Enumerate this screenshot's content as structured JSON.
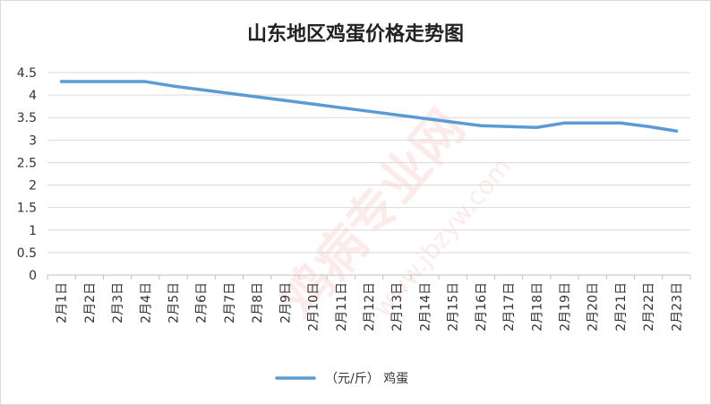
{
  "chart_data": {
    "type": "line",
    "title": "山东地区鸡蛋价格走势图",
    "categories": [
      "2月1日",
      "2月2日",
      "2月3日",
      "2月4日",
      "2月5日",
      "2月6日",
      "2月7日",
      "2月8日",
      "2月9日",
      "2月10日",
      "2月11日",
      "2月12日",
      "2月13日",
      "2月14日",
      "2月15日",
      "2月16日",
      "2月17日",
      "2月18日",
      "2月19日",
      "2月20日",
      "2月21日",
      "2月22日",
      "2月23日"
    ],
    "series": [
      {
        "name": "（元/斤） 鸡蛋",
        "color": "#5b9bd5",
        "values": [
          4.3,
          4.3,
          4.3,
          4.3,
          4.2,
          4.12,
          4.04,
          3.96,
          3.88,
          3.8,
          3.72,
          3.64,
          3.56,
          3.48,
          3.4,
          3.32,
          3.3,
          3.28,
          3.38,
          3.38,
          3.38,
          3.3,
          3.2
        ]
      }
    ],
    "ylim": [
      0,
      4.5
    ],
    "yticks": [
      "0",
      "0.5",
      "1",
      "1.5",
      "2",
      "2.5",
      "3",
      "3.5",
      "4",
      "4.5"
    ],
    "grid": true,
    "legend_position": "bottom",
    "xlabel": "",
    "ylabel": ""
  },
  "watermark": {
    "text": "鸡病专业网",
    "sub": "www.jbzyw.com"
  }
}
